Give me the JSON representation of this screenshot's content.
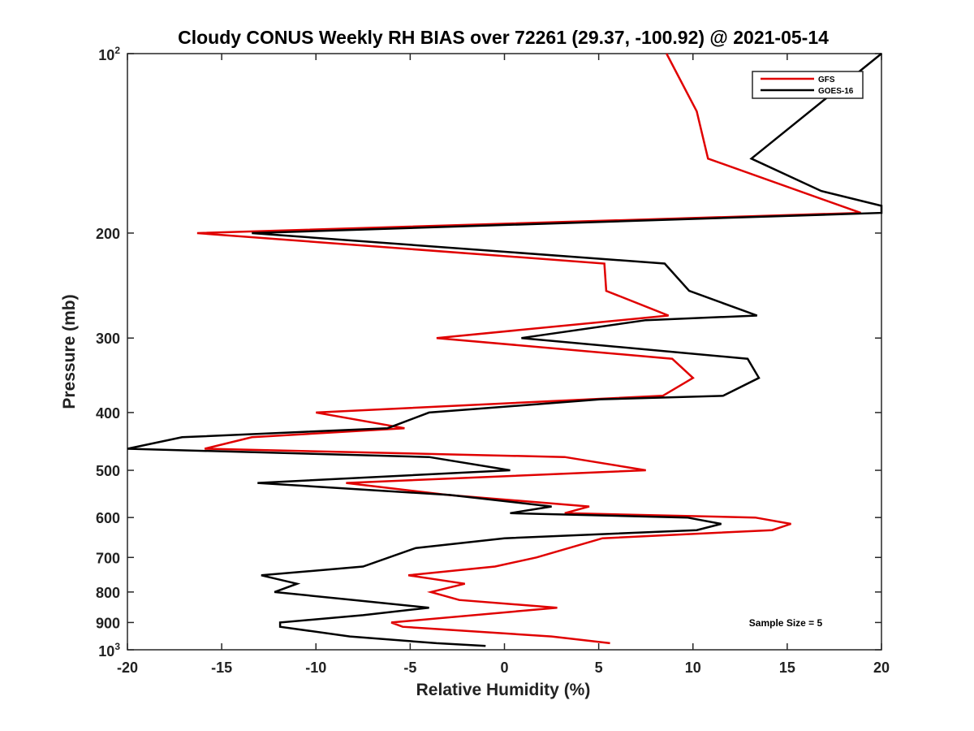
{
  "chart_data": {
    "type": "line",
    "title": "Cloudy CONUS Weekly RH BIAS over 72261 (29.37, -100.92) @ 2021-05-14",
    "xlabel": "Relative Humidity (%)",
    "ylabel": "Pressure (mb)",
    "xlim": [
      -20,
      20
    ],
    "ylim": [
      100,
      1000
    ],
    "y_scale": "log",
    "y_reversed": true,
    "grid": false,
    "legend_position": "top-right",
    "x_ticks": [
      "-20",
      "-15",
      "-10",
      "-5",
      "0",
      "5",
      "10",
      "15",
      "20"
    ],
    "y_ticks": [
      {
        "value": 100,
        "base": "10",
        "exp": "2"
      },
      {
        "value": 200,
        "label": "200"
      },
      {
        "value": 300,
        "label": "300"
      },
      {
        "value": 400,
        "label": "400"
      },
      {
        "value": 500,
        "label": "500"
      },
      {
        "value": 600,
        "label": "600"
      },
      {
        "value": 700,
        "label": "700"
      },
      {
        "value": 800,
        "label": "800"
      },
      {
        "value": 900,
        "label": "900"
      },
      {
        "value": 1000,
        "base": "10",
        "exp": "3"
      }
    ],
    "series": [
      {
        "name": "GFS",
        "color": "#e00000",
        "points": [
          [
            8.6,
            100
          ],
          [
            10.2,
            125
          ],
          [
            10.8,
            150
          ],
          [
            18.9,
            185
          ],
          [
            -16.3,
            200
          ],
          [
            5.3,
            225
          ],
          [
            5.4,
            250
          ],
          [
            8.7,
            275
          ],
          [
            -3.6,
            300
          ],
          [
            8.9,
            325
          ],
          [
            10.0,
            350
          ],
          [
            8.4,
            375
          ],
          [
            -10.0,
            400
          ],
          [
            -5.3,
            425
          ],
          [
            -13.4,
            440
          ],
          [
            -15.9,
            460
          ],
          [
            3.2,
            475
          ],
          [
            7.5,
            500
          ],
          [
            -8.4,
            525
          ],
          [
            -3.0,
            550
          ],
          [
            4.5,
            575
          ],
          [
            3.2,
            590
          ],
          [
            13.3,
            600
          ],
          [
            15.2,
            615
          ],
          [
            14.2,
            630
          ],
          [
            5.2,
            650
          ],
          [
            1.7,
            700
          ],
          [
            -0.5,
            725
          ],
          [
            -5.1,
            750
          ],
          [
            -2.1,
            775
          ],
          [
            -3.9,
            800
          ],
          [
            -2.4,
            825
          ],
          [
            2.8,
            850
          ],
          [
            -6.0,
            900
          ],
          [
            -5.4,
            915
          ],
          [
            2.5,
            950
          ],
          [
            5.6,
            975
          ]
        ]
      },
      {
        "name": "GOES-16",
        "color": "#000000",
        "points": [
          [
            20.0,
            100
          ],
          [
            13.1,
            150
          ],
          [
            16.8,
            170
          ],
          [
            20.0,
            180
          ],
          [
            20.0,
            185
          ],
          [
            -13.4,
            200
          ],
          [
            8.5,
            225
          ],
          [
            9.8,
            250
          ],
          [
            13.4,
            275
          ],
          [
            7.5,
            280
          ],
          [
            0.9,
            300
          ],
          [
            12.9,
            325
          ],
          [
            13.5,
            350
          ],
          [
            11.6,
            375
          ],
          [
            5.1,
            380
          ],
          [
            -4.0,
            400
          ],
          [
            -6.2,
            425
          ],
          [
            -17.1,
            440
          ],
          [
            -20.0,
            460
          ],
          [
            -4.0,
            475
          ],
          [
            0.3,
            500
          ],
          [
            -13.1,
            525
          ],
          [
            -2.9,
            550
          ],
          [
            2.5,
            575
          ],
          [
            0.3,
            590
          ],
          [
            9.7,
            600
          ],
          [
            11.5,
            615
          ],
          [
            10.2,
            630
          ],
          [
            0.0,
            650
          ],
          [
            -4.7,
            675
          ],
          [
            -7.5,
            725
          ],
          [
            -12.9,
            750
          ],
          [
            -11.0,
            775
          ],
          [
            -12.2,
            800
          ],
          [
            -8.0,
            825
          ],
          [
            -4.0,
            850
          ],
          [
            -7.5,
            875
          ],
          [
            -11.9,
            900
          ],
          [
            -11.9,
            915
          ],
          [
            -8.2,
            950
          ],
          [
            -3.6,
            975
          ],
          [
            -1.0,
            985
          ]
        ]
      }
    ],
    "annotations": [
      {
        "text": "Sample Size = 5",
        "x": 15,
        "y": 900
      }
    ]
  }
}
